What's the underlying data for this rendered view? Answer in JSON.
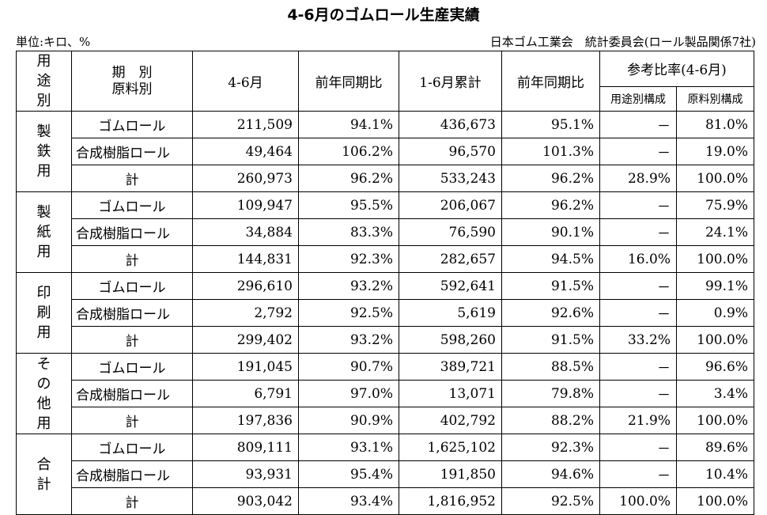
{
  "title": "4-6月のゴムロール生産実績",
  "unit": "単位:キロ、%",
  "source": "日本ゴム工業会　統計委員会(ロール製品関係7社)",
  "header": {
    "usage": [
      "用",
      "途",
      "別"
    ],
    "period": "期　別",
    "material": "原料別",
    "apr_jun": "4-6月",
    "yoy": "前年同期比",
    "jan_jun": "1-6月累計",
    "yoy2": "前年同期比",
    "ratio": "参考比率(4-6月)",
    "ratio_usage": "用途別構成",
    "ratio_material": "原料別構成"
  },
  "sections": [
    {
      "name": [
        "製",
        "鉄",
        "用"
      ],
      "rows": [
        [
          "ゴムロール",
          "211,509",
          "94.1%",
          "436,673",
          "95.1%",
          "－",
          "81.0%"
        ],
        [
          "合成樹脂ロール",
          "49,464",
          "106.2%",
          "96,570",
          "101.3%",
          "－",
          "19.0%"
        ],
        [
          "計",
          "260,973",
          "96.2%",
          "533,243",
          "96.2%",
          "28.9%",
          "100.0%"
        ]
      ]
    },
    {
      "name": [
        "製",
        "紙",
        "用"
      ],
      "rows": [
        [
          "ゴムロール",
          "109,947",
          "95.5%",
          "206,067",
          "96.2%",
          "－",
          "75.9%"
        ],
        [
          "合成樹脂ロール",
          "34,884",
          "83.3%",
          "76,590",
          "90.1%",
          "－",
          "24.1%"
        ],
        [
          "計",
          "144,831",
          "92.3%",
          "282,657",
          "94.5%",
          "16.0%",
          "100.0%"
        ]
      ]
    },
    {
      "name": [
        "印",
        "刷",
        "用"
      ],
      "rows": [
        [
          "ゴムロール",
          "296,610",
          "93.2%",
          "592,641",
          "91.5%",
          "－",
          "99.1%"
        ],
        [
          "合成樹脂ロール",
          "2,792",
          "92.5%",
          "5,619",
          "92.6%",
          "－",
          "0.9%"
        ],
        [
          "計",
          "299,402",
          "93.2%",
          "598,260",
          "91.5%",
          "33.2%",
          "100.0%"
        ]
      ]
    },
    {
      "name": [
        "そ",
        "の",
        "他",
        "用"
      ],
      "rows": [
        [
          "ゴムロール",
          "191,045",
          "90.7%",
          "389,721",
          "88.5%",
          "－",
          "96.6%"
        ],
        [
          "合成樹脂ロール",
          "6,791",
          "97.0%",
          "13,071",
          "79.8%",
          "－",
          "3.4%"
        ],
        [
          "計",
          "197,836",
          "90.9%",
          "402,792",
          "88.2%",
          "21.9%",
          "100.0%"
        ]
      ]
    },
    {
      "name": [
        "合",
        "計"
      ],
      "rows": [
        [
          "ゴムロール",
          "809,111",
          "93.1%",
          "1,625,102",
          "92.3%",
          "－",
          "89.6%"
        ],
        [
          "合成樹脂ロール",
          "93,931",
          "95.4%",
          "191,850",
          "94.6%",
          "－",
          "10.4%"
        ],
        [
          "計",
          "903,042",
          "93.4%",
          "1,816,952",
          "92.5%",
          "100.0%",
          "100.0%"
        ]
      ]
    }
  ]
}
